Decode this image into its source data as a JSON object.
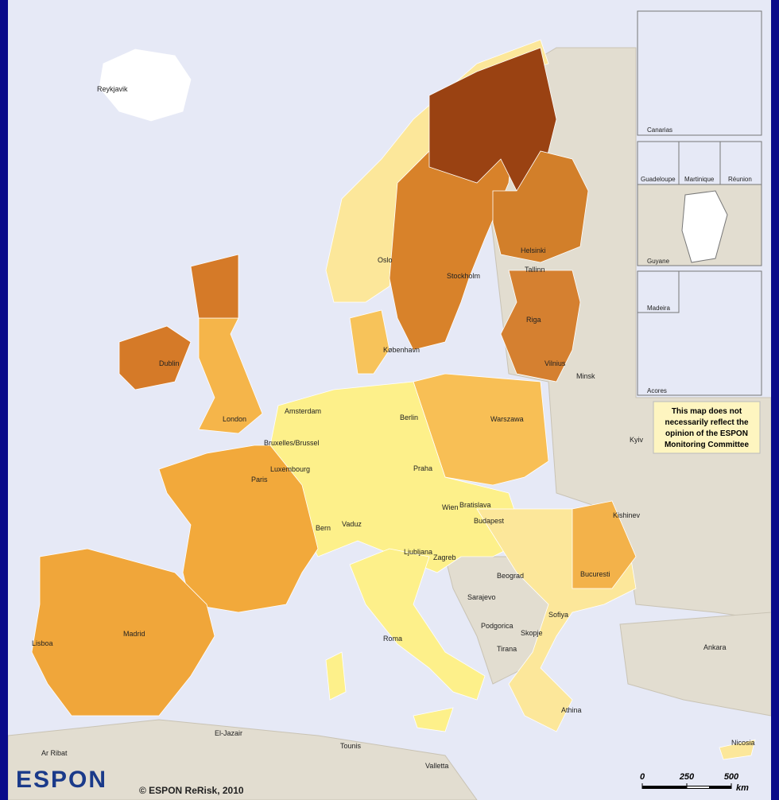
{
  "cities": [
    "Reykjavik",
    "Oslo",
    "Stockholm",
    "Helsinki",
    "Tallinn",
    "Riga",
    "Vilnius",
    "Minsk",
    "København",
    "Dublin",
    "London",
    "Amsterdam",
    "Bruxelles/Brussel",
    "Luxembourg",
    "Berlin",
    "Warszawa",
    "Kyiv",
    "Paris",
    "Praha",
    "Wien",
    "Bratislava",
    "Budapest",
    "Kishinev",
    "Bern",
    "Vaduz",
    "Ljubljana",
    "Zagreb",
    "Beograd",
    "Bucuresti",
    "Sarajevo",
    "Podgorica",
    "Sofiya",
    "Skopje",
    "Tirana",
    "Roma",
    "Ankara",
    "Madrid",
    "Lisboa",
    "Athina",
    "Nicosia",
    "El-Jazair",
    "Ar Ribat",
    "Tounis",
    "Valletta"
  ],
  "insets": [
    "Canarias",
    "Guadeloupe",
    "Martinique",
    "Réunion",
    "Guyane",
    "Madeira",
    "Acores"
  ],
  "disclaimer": [
    "This map does not",
    "necessarily reflect the",
    "opinion of the ESPON",
    "Monitoring Committee"
  ],
  "logo": "ESPON",
  "copyright": "© ESPON ReRisk, 2010",
  "scale_bar": {
    "ticks": [
      0,
      250,
      500
    ],
    "unit": "km"
  }
}
